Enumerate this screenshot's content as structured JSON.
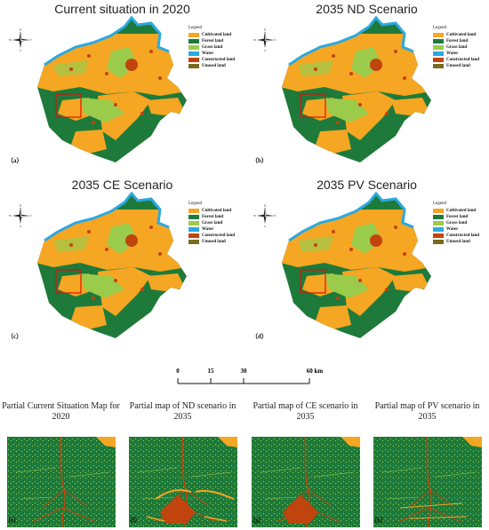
{
  "legend": {
    "title": "Legend",
    "items": [
      {
        "label": "Cultivated land",
        "color": "#F5A623"
      },
      {
        "label": "Forest land",
        "color": "#1E7A3A"
      },
      {
        "label": "Grass land",
        "color": "#9BCB4A"
      },
      {
        "label": "Water",
        "color": "#2AA9E0"
      },
      {
        "label": "Constructed land",
        "color": "#C1440E"
      },
      {
        "label": "Unused land",
        "color": "#7A6A1E"
      }
    ]
  },
  "panels": [
    {
      "title": "Current situation in 2020",
      "label": "（a）"
    },
    {
      "title": "2035 ND Scenario",
      "label": "（b）"
    },
    {
      "title": "2035 CE Scenario",
      "label": "（c）"
    },
    {
      "title": "2035 PV Scenario",
      "label": "（d）"
    }
  ],
  "compass": {
    "n": "N",
    "s": "S",
    "e": "E",
    "w": "W"
  },
  "scale": {
    "ticks": [
      "0",
      "15",
      "30",
      "60 km"
    ]
  },
  "insets": [
    {
      "title": "Partial Current Situation Map for 2020",
      "label": "（e）"
    },
    {
      "title": "Partial map of ND scenario in 2035",
      "label": "（f）"
    },
    {
      "title": "Partial map of CE scenario in 2035",
      "label": "（g）"
    },
    {
      "title": "Partial map of PV scenario in 2035",
      "label": "（h）"
    }
  ]
}
